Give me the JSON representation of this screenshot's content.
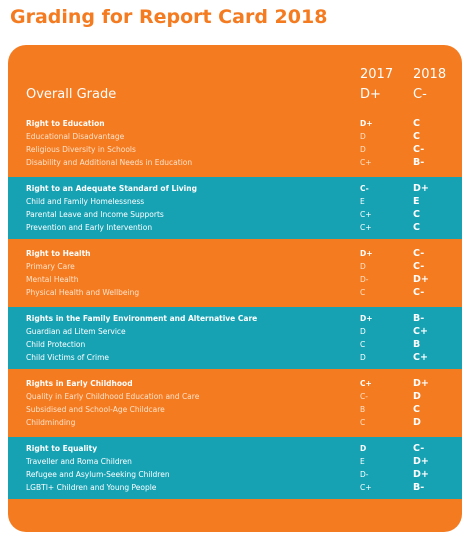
{
  "title": "Grading for Report Card 2018",
  "header": {
    "year_1": "2017",
    "year_2": "2018",
    "label": "Overall Grade",
    "grade_1": "D+",
    "grade_2": "C-"
  },
  "sections": [
    {
      "color": "orange",
      "rows": [
        [
          "Right to Education",
          "D+",
          "C"
        ],
        [
          "Educational Disadvantage",
          "D",
          "C"
        ],
        [
          "Religious Diversity in Schools",
          "D",
          "C-"
        ],
        [
          "Disability and Additional Needs in Education",
          "C+",
          "B-"
        ]
      ]
    },
    {
      "color": "teal",
      "rows": [
        [
          "Right to an Adequate Standard of Living",
          "C-",
          "D+"
        ],
        [
          "Child and Family Homelessness",
          "E",
          "E"
        ],
        [
          "Parental Leave and Income Supports",
          "C+",
          "C"
        ],
        [
          "Prevention and Early Intervention",
          "C+",
          "C"
        ]
      ]
    },
    {
      "color": "orange",
      "rows": [
        [
          "Right to Health",
          "D+",
          "C-"
        ],
        [
          "Primary Care",
          "D",
          "C-"
        ],
        [
          "Mental Health",
          "D-",
          "D+"
        ],
        [
          "Physical Health and Wellbeing",
          "C",
          "C-"
        ]
      ]
    },
    {
      "color": "teal",
      "rows": [
        [
          "Rights in the Family Environment and Alternative Care",
          "D+",
          "B-"
        ],
        [
          "Guardian ad Litem Service",
          "D",
          "C+"
        ],
        [
          "Child Protection",
          "C",
          "B"
        ],
        [
          "Child Victims of Crime",
          "D",
          "C+"
        ]
      ]
    },
    {
      "color": "orange",
      "rows": [
        [
          "Rights in Early Childhood",
          "C+",
          "D+"
        ],
        [
          "Quality in Early Childhood Education and Care",
          "C-",
          "D"
        ],
        [
          "Subsidised and School-Age Childcare",
          "B",
          "C"
        ],
        [
          "Childminding",
          "C",
          "D"
        ]
      ]
    },
    {
      "color": "teal",
      "rows": [
        [
          "Right to Equality",
          "D",
          "C-"
        ],
        [
          "Traveller and Roma Children",
          "E",
          "D+"
        ],
        [
          "Refugee and Asylum-Seeking Children",
          "D-",
          "D+"
        ],
        [
          "LGBTI+ Children and Young People",
          "C+",
          "B-"
        ]
      ]
    }
  ]
}
